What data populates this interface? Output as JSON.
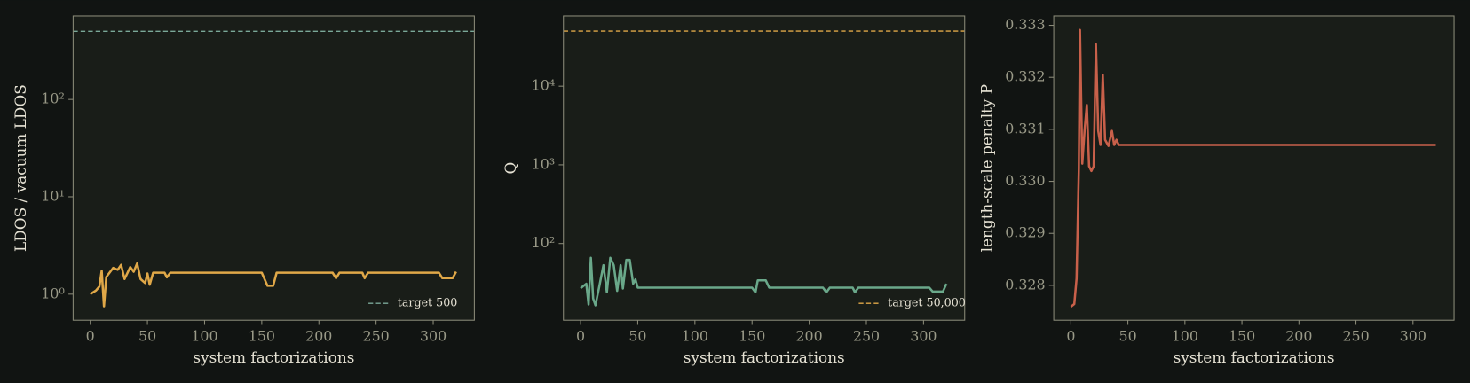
{
  "chart_data": [
    {
      "type": "line",
      "ylabel": "LDOS / vacuum LDOS",
      "xlabel": "system factorizations",
      "yscale": "log",
      "xlim": [
        -15,
        336
      ],
      "ylim": [
        0.54,
        720
      ],
      "xticks": [
        0,
        50,
        100,
        150,
        200,
        250,
        300
      ],
      "yticks": [
        {
          "value": 1,
          "label": "10⁰"
        },
        {
          "value": 10,
          "label": "10¹"
        },
        {
          "value": 100,
          "label": "10²"
        }
      ],
      "color": "#e0a848",
      "x": [
        0,
        5,
        8,
        10,
        12,
        14,
        20,
        24,
        27,
        30,
        35,
        38,
        41,
        44,
        48,
        50,
        52,
        55,
        65,
        67,
        70,
        150,
        155,
        160,
        163,
        212,
        215,
        218,
        238,
        240,
        243,
        305,
        308,
        317,
        320
      ],
      "values": [
        1.0,
        1.09,
        1.2,
        1.74,
        0.75,
        1.5,
        1.86,
        1.78,
        2.0,
        1.43,
        1.9,
        1.7,
        2.07,
        1.43,
        1.3,
        1.63,
        1.25,
        1.66,
        1.66,
        1.49,
        1.66,
        1.66,
        1.22,
        1.22,
        1.66,
        1.66,
        1.46,
        1.66,
        1.66,
        1.46,
        1.66,
        1.66,
        1.46,
        1.46,
        1.7
      ],
      "reference_line": {
        "name": "target 500",
        "value": 500,
        "color": "#7aa898"
      },
      "legend": "lower right"
    },
    {
      "type": "line",
      "ylabel": "Q",
      "xlabel": "system factorizations",
      "yscale": "log",
      "xlim": [
        -15,
        336
      ],
      "ylim": [
        10.6,
        78000
      ],
      "xticks": [
        0,
        50,
        100,
        150,
        200,
        250,
        300
      ],
      "yticks": [
        {
          "value": 100,
          "label": "10²"
        },
        {
          "value": 1000,
          "label": "10³"
        },
        {
          "value": 10000,
          "label": "10⁴"
        }
      ],
      "color": "#6aa88a",
      "x": [
        0,
        5,
        7,
        9,
        11,
        13,
        16,
        20,
        23,
        26,
        29,
        32,
        35,
        37,
        40,
        43,
        46,
        48,
        50,
        150,
        153,
        155,
        162,
        165,
        212,
        215,
        218,
        238,
        240,
        243,
        305,
        308,
        317,
        320
      ],
      "values": [
        27,
        30.8,
        16.8,
        66,
        20,
        16.4,
        26.8,
        53,
        24,
        66,
        53,
        25,
        53,
        26.8,
        62,
        62,
        30.8,
        35,
        27.5,
        27.5,
        24,
        34,
        34,
        27.5,
        27.5,
        24,
        27.5,
        27.5,
        24,
        27.5,
        27.5,
        24.5,
        24.5,
        30.8
      ],
      "reference_line": {
        "name": "target 50,000",
        "value": 50000,
        "color": "#e0a848"
      },
      "legend": "lower right"
    },
    {
      "type": "line",
      "ylabel": "length-scale penalty P",
      "xlabel": "system factorizations",
      "yscale": "linear",
      "xlim": [
        -15,
        336
      ],
      "ylim": [
        0.32733,
        0.33318
      ],
      "xticks": [
        0,
        50,
        100,
        150,
        200,
        250,
        300
      ],
      "yticks": [
        0.328,
        0.329,
        {
          "value": 0.33,
          "label": "0.330"
        },
        0.331,
        0.332,
        0.333
      ],
      "color": "#c8604a",
      "x": [
        0,
        3,
        5,
        7,
        8,
        10,
        12,
        14,
        16,
        18,
        20,
        22,
        24,
        26,
        28,
        30,
        33,
        36,
        38,
        40,
        42,
        320
      ],
      "values": [
        0.32759,
        0.32764,
        0.32813,
        0.33025,
        0.33291,
        0.33034,
        0.33097,
        0.33147,
        0.33029,
        0.3302,
        0.33029,
        0.33264,
        0.33097,
        0.3307,
        0.33205,
        0.3308,
        0.33068,
        0.33097,
        0.3307,
        0.3308,
        0.3307,
        0.3307
      ]
    }
  ]
}
